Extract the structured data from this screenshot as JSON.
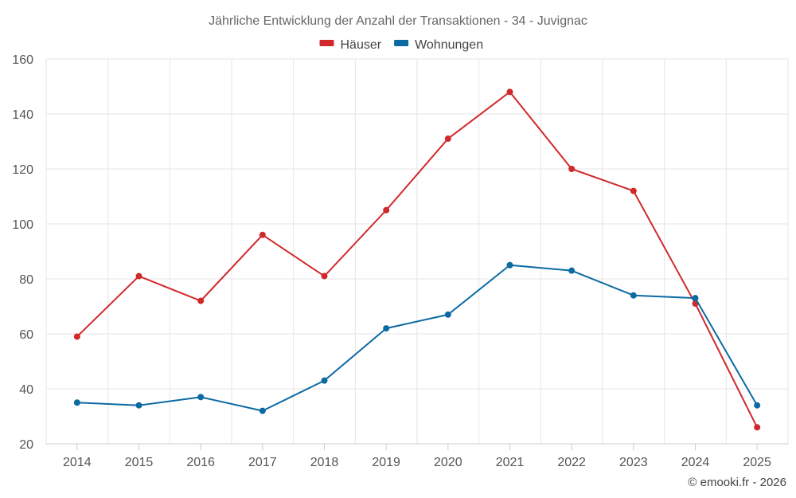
{
  "chart_data": {
    "type": "line",
    "title": "Jährliche Entwicklung der Anzahl der Transaktionen - 34 - Juvignac",
    "categories": [
      "2014",
      "2015",
      "2016",
      "2017",
      "2018",
      "2019",
      "2020",
      "2021",
      "2022",
      "2023",
      "2024",
      "2025"
    ],
    "series": [
      {
        "name": "Häuser",
        "color": "#d1282c",
        "values": [
          59,
          81,
          72,
          96,
          81,
          105,
          131,
          148,
          120,
          112,
          71,
          26
        ]
      },
      {
        "name": "Wohnungen",
        "color": "#0b6aa2",
        "values": [
          35,
          34,
          37,
          32,
          43,
          62,
          67,
          85,
          83,
          74,
          73,
          34
        ]
      }
    ],
    "ylim": [
      20,
      160
    ],
    "yticks": [
      20,
      40,
      60,
      80,
      100,
      120,
      140,
      160
    ],
    "grid": true,
    "legend_position": "top-center",
    "credit": "© emooki.fr - 2026"
  }
}
